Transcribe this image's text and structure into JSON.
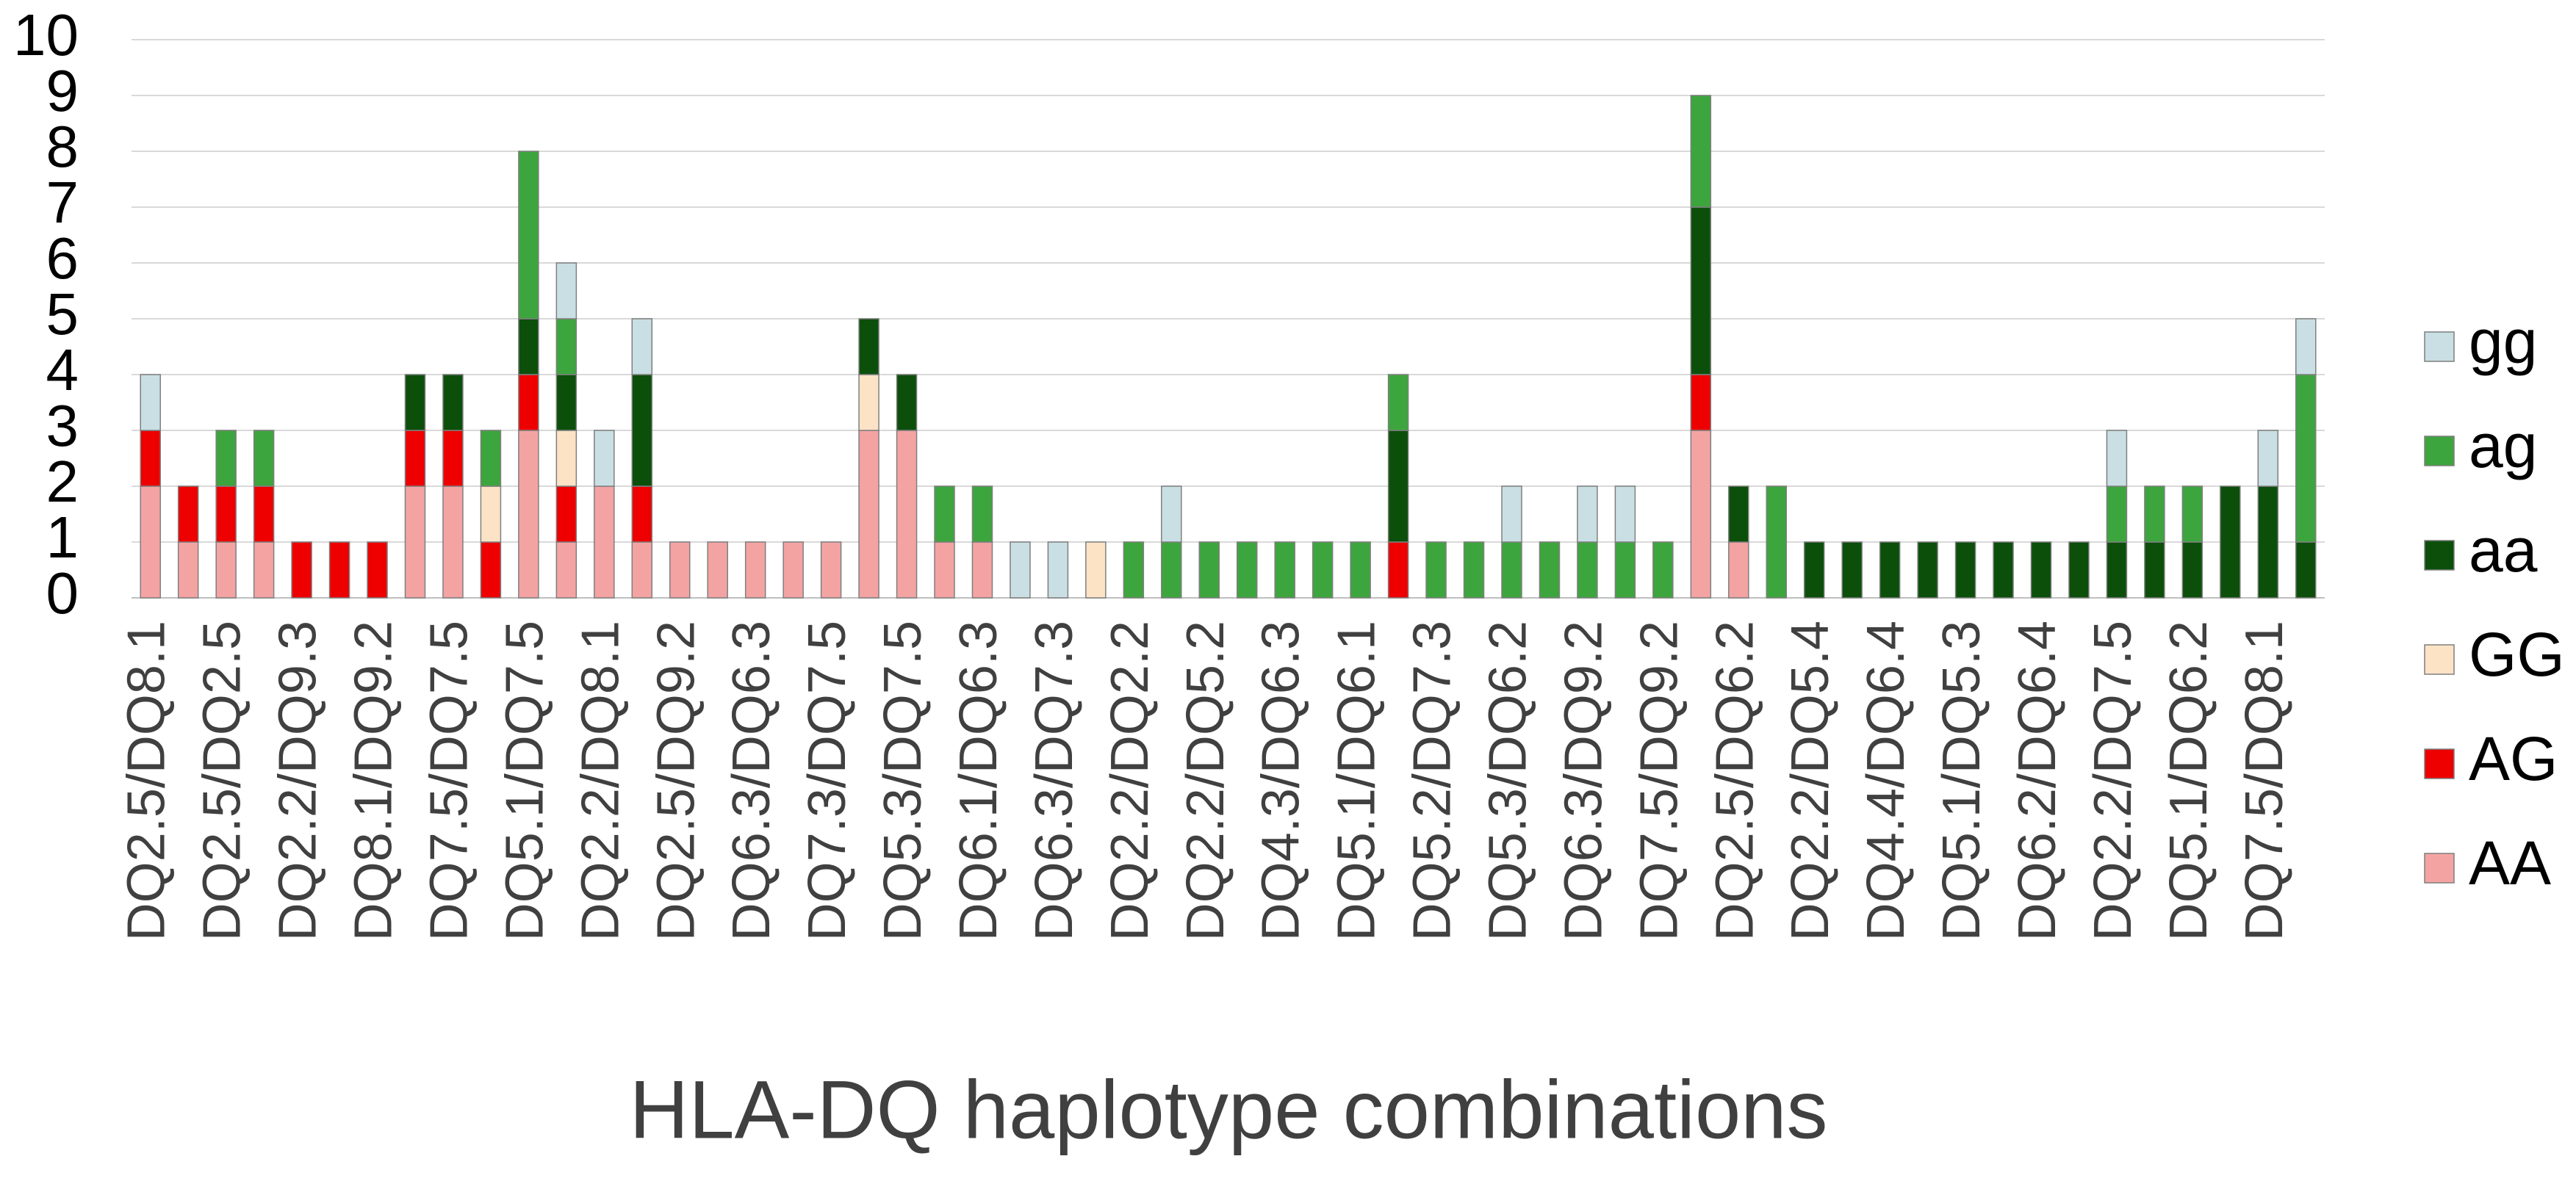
{
  "chart_data": {
    "type": "stacked_bar",
    "x_label": "HLA-DQ haplotype combinations",
    "categories": [
      "DQ2.5/DQ8.1",
      null,
      "DQ2.5/DQ2.5",
      null,
      "DQ2.2/DQ9.3",
      null,
      "DQ8.1/DQ9.2",
      null,
      "DQ7.5/DQ7.5",
      null,
      "DQ5.1/DQ7.5",
      null,
      "DQ2.2/DQ8.1",
      null,
      "DQ2.5/DQ9.2",
      null,
      "DQ6.3/DQ6.3",
      null,
      "DQ7.3/DQ7.5",
      null,
      "DQ5.3/DQ7.5",
      null,
      "DQ6.1/DQ6.3",
      null,
      "DQ6.3/DQ7.3",
      null,
      "DQ2.2/DQ2.2",
      null,
      "DQ2.2/DQ5.2",
      null,
      "DQ4.3/DQ6.3",
      null,
      "DQ5.1/DQ6.1",
      null,
      "DQ5.2/DQ7.3",
      null,
      "DQ5.3/DQ6.2",
      null,
      "DQ6.3/DQ9.2",
      null,
      "DQ7.5/DQ9.2",
      null,
      "DQ2.5/DQ6.2",
      null,
      "DQ2.2/DQ5.4",
      null,
      "DQ4.4/DQ6.4",
      null,
      "DQ5.1/DQ5.3",
      null,
      "DQ6.2/DQ6.4",
      null,
      "DQ2.2/DQ7.5",
      null,
      "DQ5.1/DQ6.2",
      null,
      "DQ7.5/DQ8.1",
      null
    ],
    "series": [
      {
        "name": "AA",
        "color": "#f4a3a3",
        "values": [
          2,
          1,
          1,
          1,
          0,
          0,
          0,
          2,
          2,
          0,
          3,
          1,
          2,
          1,
          1,
          1,
          1,
          1,
          1,
          3,
          3,
          1,
          1,
          0,
          0,
          0,
          0,
          0,
          0,
          0,
          0,
          0,
          0,
          0,
          0,
          0,
          0,
          0,
          0,
          0,
          0,
          3,
          1,
          0,
          0,
          0,
          0,
          0,
          0,
          0,
          0,
          0,
          0,
          0,
          0,
          0,
          0,
          0
        ]
      },
      {
        "name": "AG",
        "color": "#ee0000",
        "values": [
          1,
          1,
          1,
          1,
          1,
          1,
          1,
          1,
          1,
          1,
          1,
          1,
          0,
          1,
          0,
          0,
          0,
          0,
          0,
          0,
          0,
          0,
          0,
          0,
          0,
          0,
          0,
          0,
          0,
          0,
          0,
          0,
          0,
          1,
          0,
          0,
          0,
          0,
          0,
          0,
          0,
          1,
          0,
          0,
          0,
          0,
          0,
          0,
          0,
          0,
          0,
          0,
          0,
          0,
          0,
          0,
          0,
          0
        ]
      },
      {
        "name": "GG",
        "color": "#fde3c6",
        "values": [
          0,
          0,
          0,
          0,
          0,
          0,
          0,
          0,
          0,
          1,
          0,
          1,
          0,
          0,
          0,
          0,
          0,
          0,
          0,
          1,
          0,
          0,
          0,
          0,
          0,
          1,
          0,
          0,
          0,
          0,
          0,
          0,
          0,
          0,
          0,
          0,
          0,
          0,
          0,
          0,
          0,
          0,
          0,
          0,
          0,
          0,
          0,
          0,
          0,
          0,
          0,
          0,
          0,
          0,
          0,
          0,
          0,
          0
        ]
      },
      {
        "name": "aa",
        "color": "#0b4f0b",
        "values": [
          0,
          0,
          0,
          0,
          0,
          0,
          0,
          1,
          1,
          0,
          1,
          1,
          0,
          2,
          0,
          0,
          0,
          0,
          0,
          1,
          1,
          0,
          0,
          0,
          0,
          0,
          0,
          0,
          0,
          0,
          0,
          0,
          0,
          2,
          0,
          0,
          0,
          0,
          0,
          0,
          0,
          3,
          1,
          0,
          1,
          1,
          1,
          1,
          1,
          1,
          1,
          1,
          1,
          1,
          1,
          2,
          2,
          1
        ]
      },
      {
        "name": "ag",
        "color": "#3da53d",
        "values": [
          0,
          0,
          1,
          1,
          0,
          0,
          0,
          0,
          0,
          1,
          3,
          1,
          0,
          0,
          0,
          0,
          0,
          0,
          0,
          0,
          0,
          1,
          1,
          0,
          0,
          0,
          1,
          1,
          1,
          1,
          1,
          1,
          1,
          1,
          1,
          1,
          1,
          1,
          1,
          1,
          1,
          2,
          0,
          2,
          0,
          0,
          0,
          0,
          0,
          0,
          0,
          0,
          1,
          1,
          1,
          0,
          0,
          3
        ]
      },
      {
        "name": "gg",
        "color": "#c9dfe4",
        "values": [
          1,
          0,
          0,
          0,
          0,
          0,
          0,
          0,
          0,
          0,
          0,
          1,
          1,
          1,
          0,
          0,
          0,
          0,
          0,
          0,
          0,
          0,
          0,
          1,
          1,
          0,
          0,
          1,
          0,
          0,
          0,
          0,
          0,
          0,
          0,
          0,
          1,
          0,
          1,
          1,
          0,
          0,
          0,
          0,
          0,
          0,
          0,
          0,
          0,
          0,
          0,
          0,
          1,
          0,
          0,
          0,
          1,
          1
        ]
      }
    ],
    "ylim": [
      0,
      10
    ],
    "yticks": [
      0,
      1,
      2,
      3,
      4,
      5,
      6,
      7,
      8,
      9,
      10
    ],
    "grid": true,
    "legend": "right"
  }
}
